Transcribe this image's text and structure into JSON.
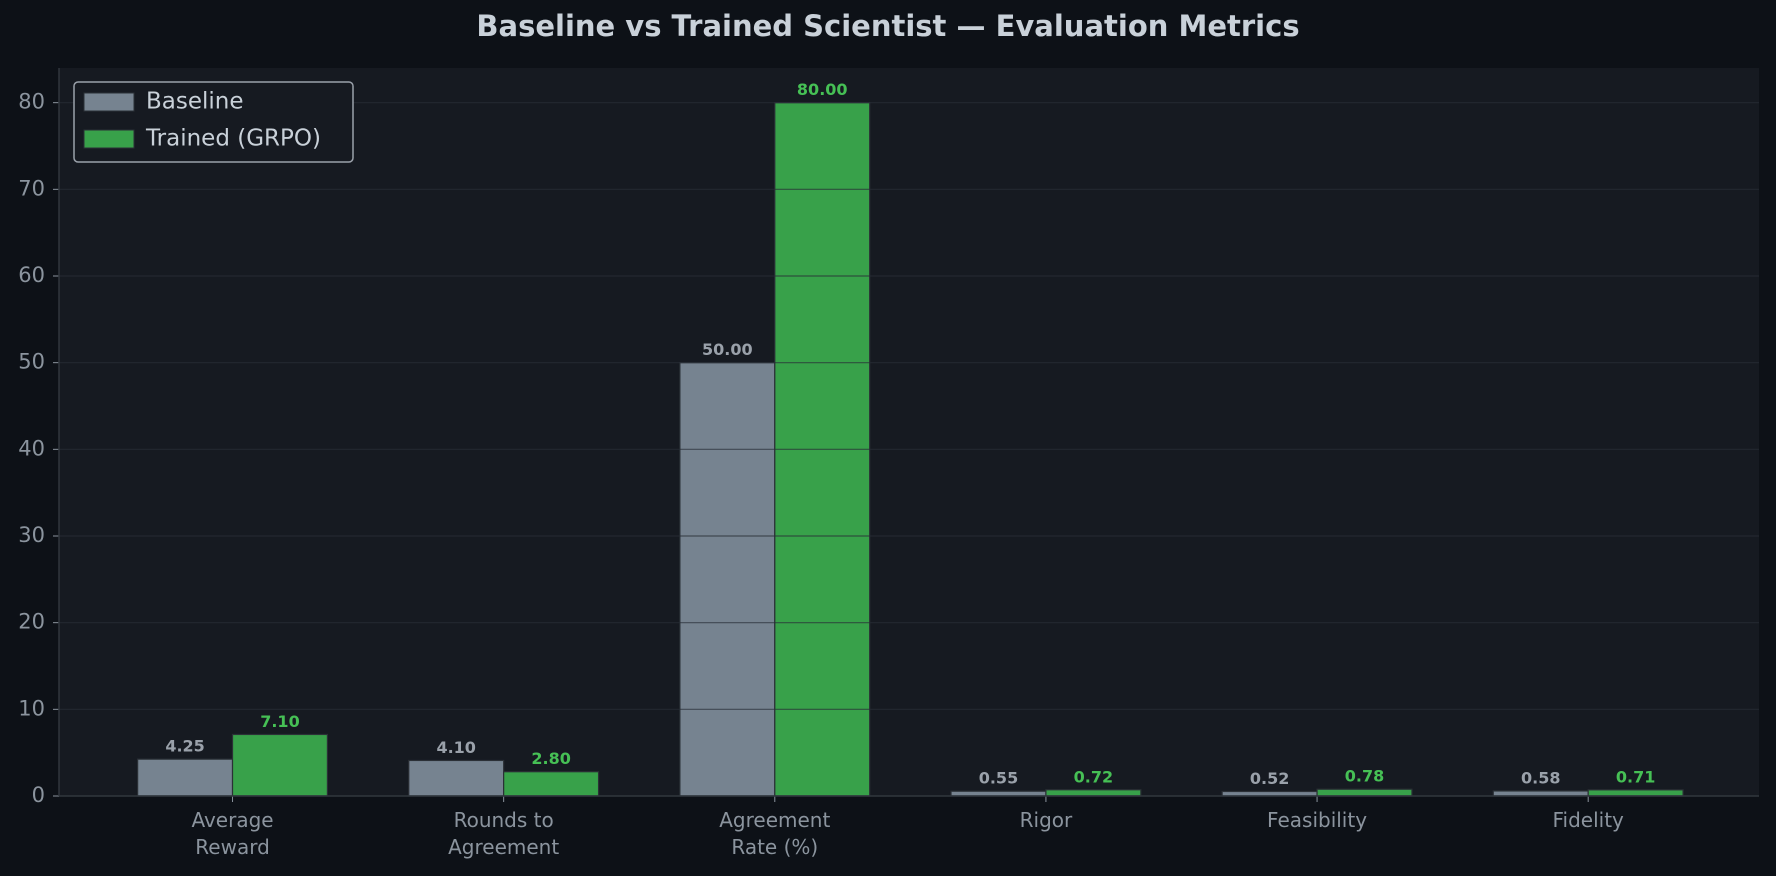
{
  "chart_data": {
    "type": "bar",
    "title": "Baseline vs Trained Scientist — Evaluation Metrics",
    "categories": [
      "Average\nReward",
      "Rounds to\nAgreement",
      "Agreement\nRate (%)",
      "Rigor",
      "Feasibility",
      "Fidelity"
    ],
    "series": [
      {
        "name": "Baseline",
        "color": "#768390",
        "label_color": "#9aa1aa",
        "values": [
          4.25,
          4.1,
          50,
          0.55,
          0.52,
          0.58
        ],
        "value_labels": [
          "4.25",
          "4.10",
          "50.00",
          "0.55",
          "0.52",
          "0.58"
        ]
      },
      {
        "name": "Trained (GRPO)",
        "color": "#38a14a",
        "label_color": "#46c055",
        "values": [
          7.1,
          2.8,
          80,
          0.72,
          0.78,
          0.71
        ],
        "value_labels": [
          "7.10",
          "2.80",
          "80.00",
          "0.72",
          "0.78",
          "0.71"
        ]
      }
    ],
    "ylim": [
      0,
      84
    ],
    "yticks": [
      0,
      10,
      20,
      30,
      40,
      50,
      60,
      70,
      80
    ],
    "grid": true,
    "legend": "upper-left"
  }
}
